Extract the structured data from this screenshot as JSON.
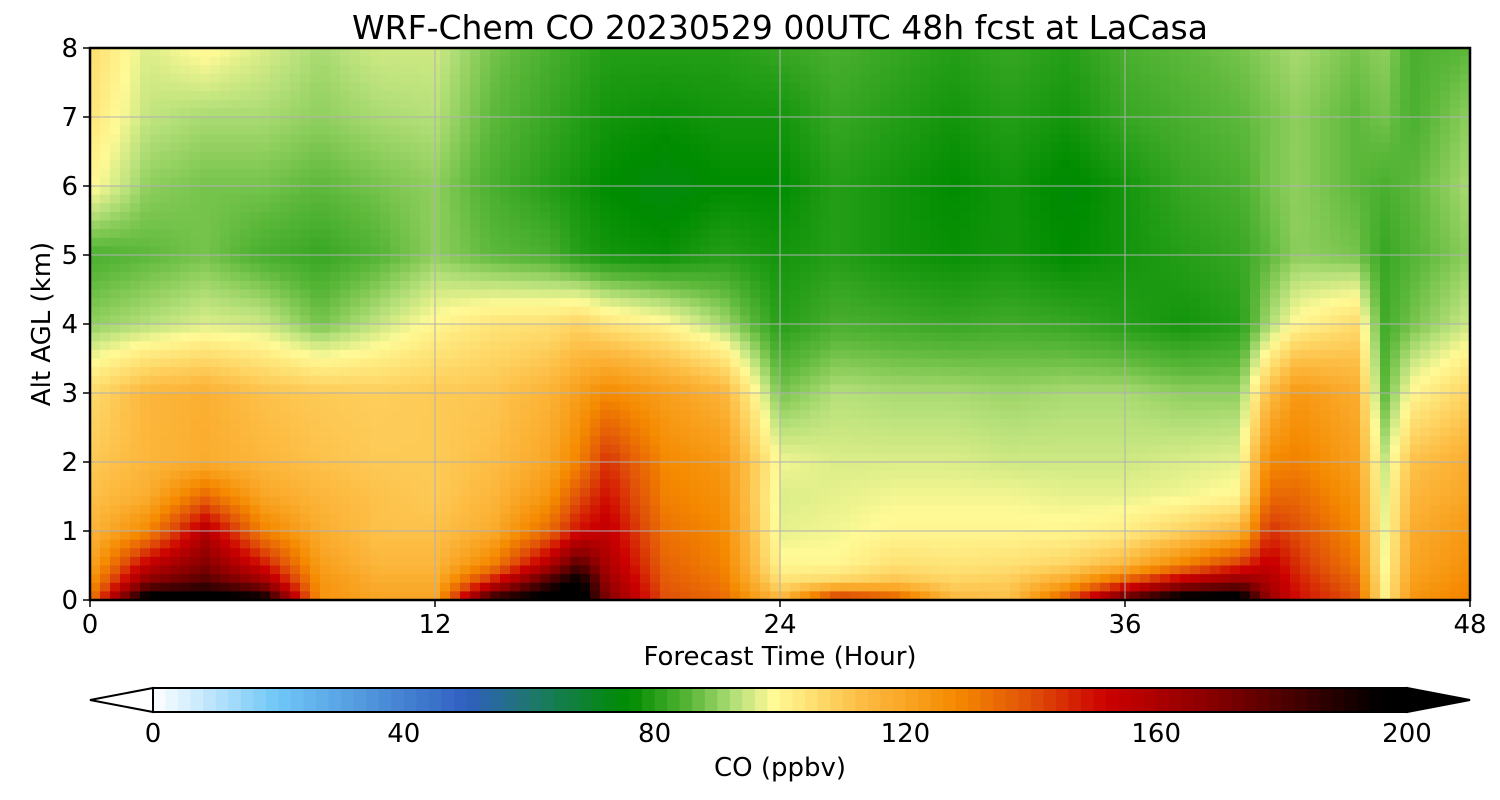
{
  "chart_data": {
    "type": "heatmap",
    "title": "WRF-Chem CO  20230529 00UTC 48h fcst at LaCasa",
    "xlabel": "Forecast Time (Hour)",
    "ylabel": "Alt AGL (km)",
    "xlim": [
      0,
      48
    ],
    "ylim": [
      0,
      8
    ],
    "xticks": [
      0,
      12,
      24,
      36,
      48
    ],
    "yticks": [
      0,
      1,
      2,
      3,
      4,
      5,
      6,
      7,
      8
    ],
    "grid": true,
    "x": [
      0,
      2,
      4,
      6,
      8,
      10,
      12,
      14,
      16,
      17,
      18,
      20,
      22,
      24,
      26,
      28,
      30,
      32,
      34,
      36,
      38,
      40,
      41,
      42,
      44,
      45,
      46,
      48
    ],
    "y": [
      0,
      0.25,
      0.5,
      1,
      1.5,
      2,
      3,
      4,
      5,
      6,
      7,
      8
    ],
    "z": [
      [
        130,
        205,
        205,
        200,
        125,
        120,
        120,
        190,
        205,
        205,
        170,
        140,
        135,
        115,
        150,
        140,
        115,
        112,
        140,
        180,
        205,
        205,
        165,
        150,
        140,
        100,
        125,
        130
      ],
      [
        125,
        170,
        180,
        165,
        125,
        118,
        118,
        150,
        185,
        200,
        165,
        138,
        132,
        105,
        108,
        112,
        108,
        110,
        120,
        140,
        160,
        170,
        160,
        148,
        136,
        100,
        122,
        128
      ],
      [
        120,
        155,
        170,
        150,
        122,
        115,
        115,
        130,
        160,
        180,
        160,
        136,
        130,
        100,
        100,
        105,
        104,
        105,
        108,
        115,
        130,
        145,
        155,
        145,
        132,
        98,
        120,
        126
      ],
      [
        115,
        128,
        158,
        130,
        118,
        112,
        112,
        118,
        135,
        150,
        155,
        133,
        128,
        97,
        98,
        100,
        100,
        100,
        100,
        102,
        108,
        115,
        145,
        140,
        128,
        97,
        118,
        124
      ],
      [
        112,
        118,
        135,
        120,
        115,
        112,
        110,
        115,
        125,
        140,
        150,
        130,
        126,
        96,
        97,
        98,
        98,
        98,
        97,
        97,
        98,
        100,
        135,
        135,
        125,
        96,
        115,
        120
      ],
      [
        110,
        115,
        118,
        115,
        112,
        110,
        110,
        113,
        120,
        130,
        145,
        128,
        124,
        98,
        96,
        96,
        96,
        95,
        95,
        95,
        96,
        97,
        128,
        130,
        122,
        94,
        112,
        118
      ],
      [
        106,
        115,
        117,
        112,
        110,
        109,
        110,
        111,
        116,
        122,
        128,
        122,
        116,
        88,
        93,
        92,
        92,
        91,
        92,
        92,
        90,
        90,
        113,
        124,
        118,
        86,
        100,
        108
      ],
      [
        90,
        93,
        96,
        95,
        88,
        94,
        100,
        104,
        105,
        108,
        104,
        100,
        92,
        80,
        84,
        83,
        82,
        83,
        82,
        80,
        78,
        80,
        92,
        100,
        106,
        83,
        88,
        95
      ],
      [
        84,
        86,
        88,
        84,
        82,
        85,
        90,
        86,
        84,
        80,
        78,
        77,
        80,
        78,
        80,
        78,
        77,
        78,
        76,
        78,
        80,
        82,
        86,
        90,
        88,
        82,
        85,
        90
      ],
      [
        100,
        90,
        88,
        88,
        86,
        88,
        90,
        84,
        80,
        78,
        76,
        74,
        76,
        76,
        80,
        78,
        76,
        78,
        75,
        78,
        82,
        84,
        88,
        90,
        86,
        84,
        86,
        92
      ],
      [
        104,
        94,
        92,
        92,
        90,
        92,
        93,
        86,
        82,
        80,
        78,
        77,
        78,
        78,
        82,
        80,
        78,
        80,
        78,
        82,
        84,
        86,
        88,
        90,
        86,
        88,
        84,
        90
      ],
      [
        106,
        96,
        100,
        96,
        92,
        95,
        95,
        88,
        84,
        82,
        80,
        80,
        80,
        82,
        84,
        82,
        80,
        82,
        80,
        84,
        86,
        88,
        90,
        92,
        88,
        90,
        84,
        86
      ]
    ],
    "colorbar": {
      "label": "CO  (ppbv)",
      "min": 0,
      "max": 200,
      "ticks": [
        0,
        40,
        80,
        120,
        160,
        200
      ],
      "extend": "both",
      "stops": [
        {
          "value": 0,
          "color": "#ffffff"
        },
        {
          "value": 20,
          "color": "#6ec6f7"
        },
        {
          "value": 50,
          "color": "#3060c0"
        },
        {
          "value": 62,
          "color": "#1a7a60"
        },
        {
          "value": 76,
          "color": "#008c00"
        },
        {
          "value": 86,
          "color": "#5cb83a"
        },
        {
          "value": 93,
          "color": "#b6e07a"
        },
        {
          "value": 99,
          "color": "#fffa96"
        },
        {
          "value": 113,
          "color": "#fdbd44"
        },
        {
          "value": 128,
          "color": "#f58a00"
        },
        {
          "value": 140,
          "color": "#e05008"
        },
        {
          "value": 152,
          "color": "#cc0000"
        },
        {
          "value": 168,
          "color": "#8c0000"
        },
        {
          "value": 184,
          "color": "#3c0000"
        },
        {
          "value": 196,
          "color": "#000000"
        }
      ]
    }
  }
}
